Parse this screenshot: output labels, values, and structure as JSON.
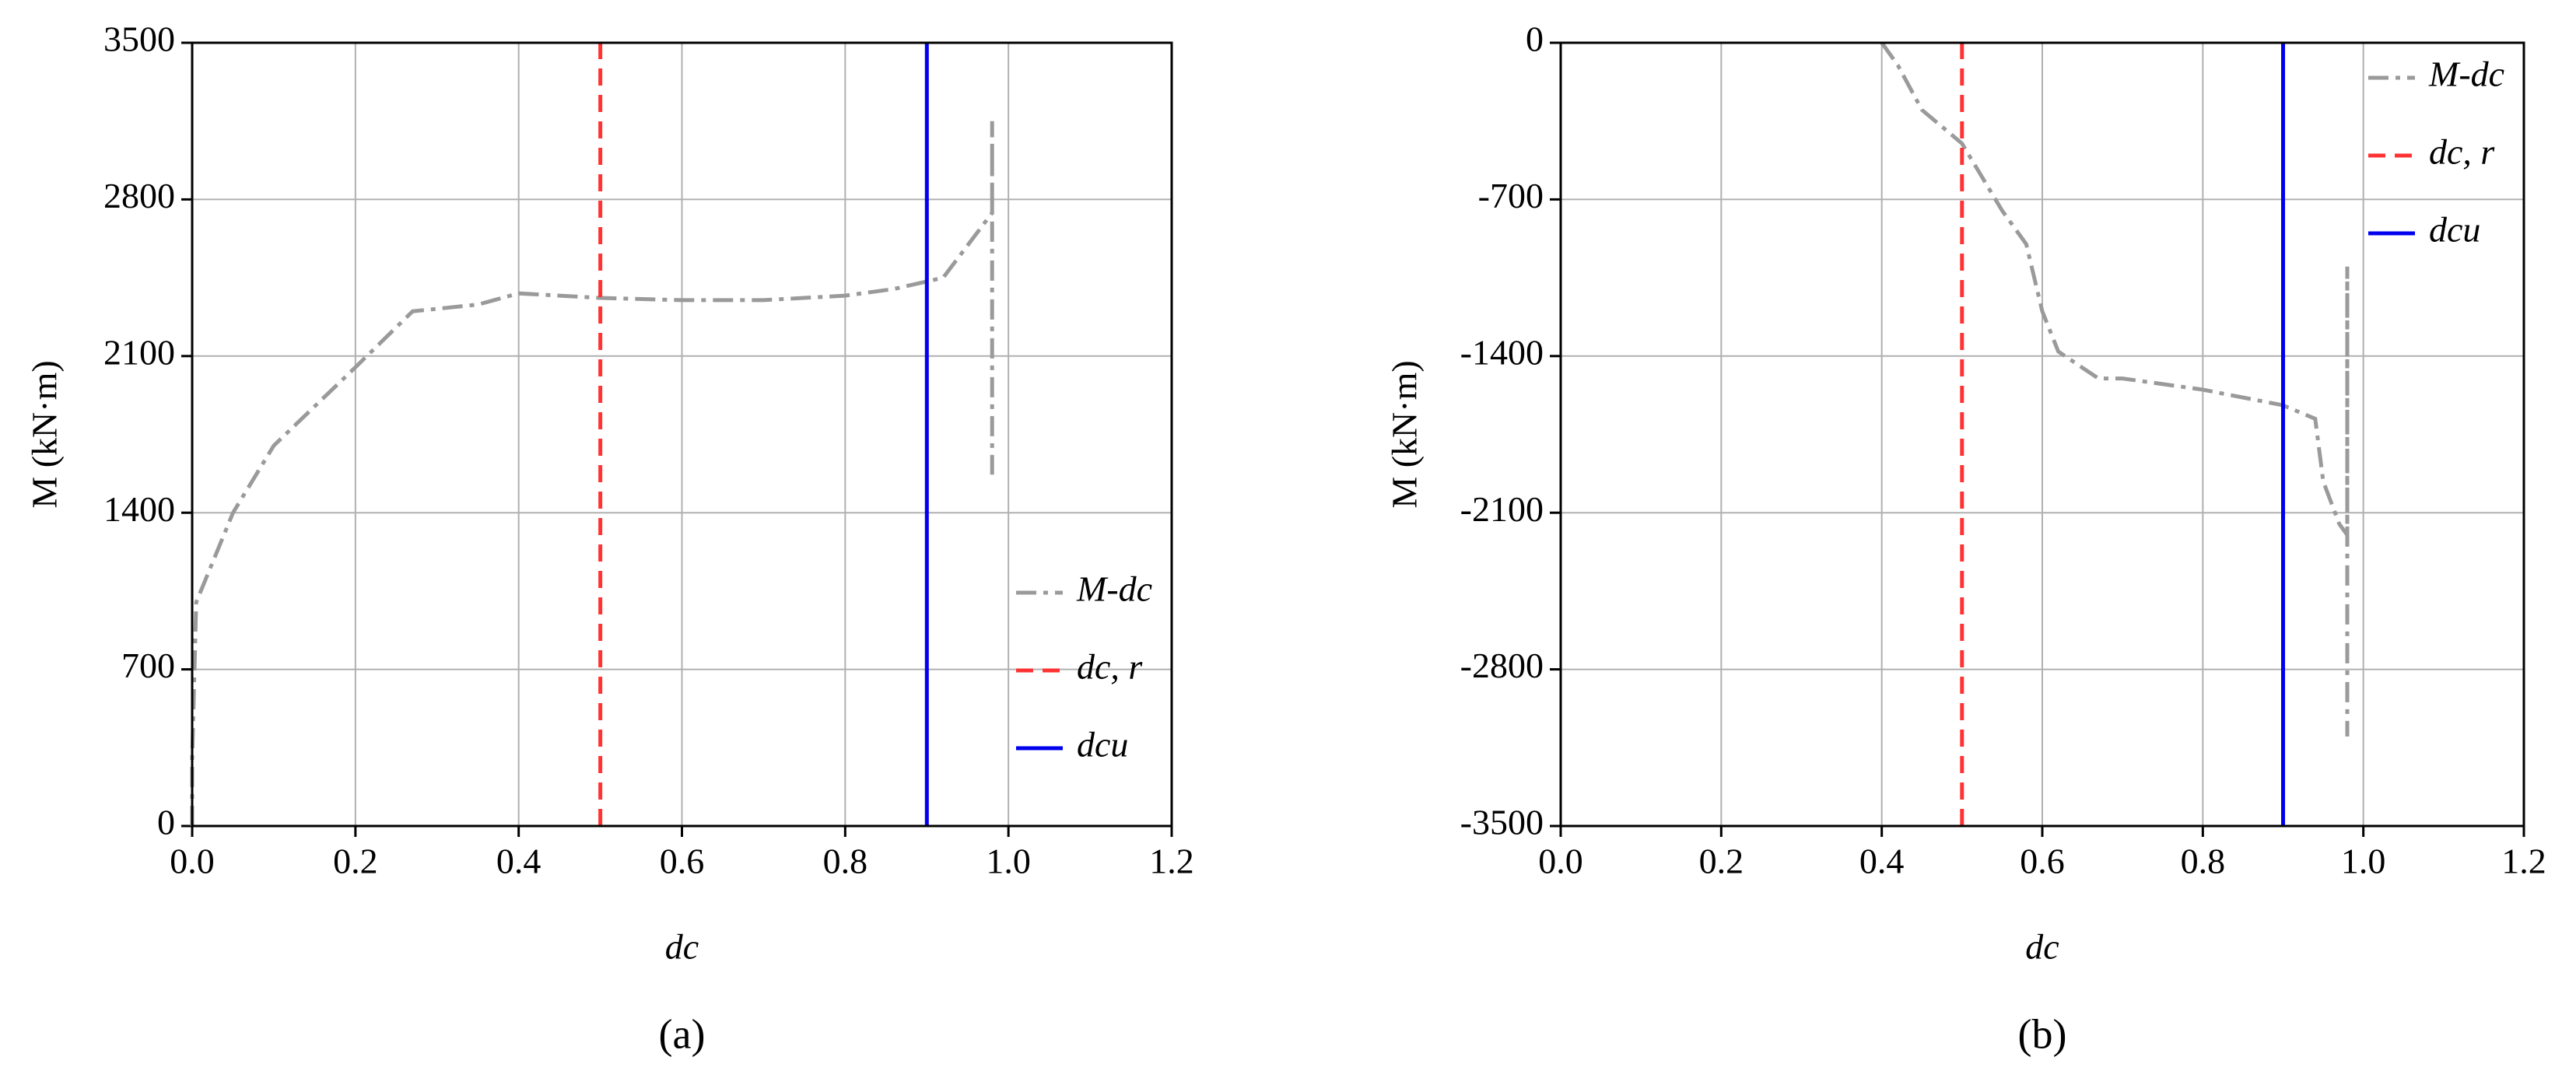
{
  "chart_data": [
    {
      "type": "line",
      "label": "(a)",
      "xlabel": "dc",
      "ylabel": "M (kN·m)",
      "xlim": [
        0,
        1.2
      ],
      "ylim": [
        0,
        3500
      ],
      "xticks": [
        {
          "value": 0,
          "label": "0.0"
        },
        0.2,
        0.4,
        0.6,
        0.8,
        {
          "value": 1,
          "label": "1.0"
        },
        1.2
      ],
      "yticks": [
        0,
        700,
        1400,
        2100,
        2800,
        3500
      ],
      "grid": true,
      "legend": "lower right",
      "series": [
        {
          "name": "M-dc",
          "color": "#9a9a9a",
          "linestyle": "dashdot",
          "x": [
            0,
            0,
            0.005,
            0.05,
            0.1,
            0.2,
            0.27,
            0.35,
            0.4,
            0.5,
            0.6,
            0.7,
            0.8,
            0.86,
            0.92,
            0.98,
            0.98,
            0.98
          ],
          "values": [
            0,
            300,
            1000,
            1400,
            1700,
            2050,
            2300,
            2330,
            2380,
            2360,
            2350,
            2350,
            2370,
            2400,
            2450,
            2740,
            3150,
            1570
          ]
        },
        {
          "name": "dc, r",
          "color": "#ff3333",
          "linestyle": "dashed",
          "x": [
            0.5,
            0.5
          ],
          "values": [
            0,
            3500
          ]
        },
        {
          "name": "dcu",
          "color": "#0000ee",
          "linestyle": "solid",
          "x": [
            0.9,
            0.9
          ],
          "values": [
            0,
            3500
          ]
        }
      ]
    },
    {
      "type": "line",
      "label": "(b)",
      "xlabel": "dc",
      "ylabel": "M (kN·m)",
      "xlim": [
        0,
        1.2
      ],
      "ylim": [
        -3500,
        0
      ],
      "xticks": [
        {
          "value": 0,
          "label": "0.0"
        },
        0.2,
        0.4,
        0.6,
        0.8,
        {
          "value": 1,
          "label": "1.0"
        },
        1.2
      ],
      "yticks": [
        -3500,
        -2800,
        -2100,
        -1400,
        -700,
        0
      ],
      "grid": true,
      "legend": "upper right",
      "series": [
        {
          "name": "M-dc",
          "color": "#9a9a9a",
          "linestyle": "dashdot",
          "x": [
            0.4,
            0.42,
            0.45,
            0.5,
            0.55,
            0.58,
            0.6,
            0.62,
            0.67,
            0.7,
            0.8,
            0.9,
            0.94,
            0.95,
            0.97,
            0.98,
            0.98,
            0.98
          ],
          "values": [
            0,
            -100,
            -300,
            -450,
            -750,
            -900,
            -1200,
            -1380,
            -1500,
            -1500,
            -1550,
            -1620,
            -1680,
            -1960,
            -2150,
            -2200,
            -1000,
            -3100
          ]
        },
        {
          "name": "dc, r",
          "color": "#ff3333",
          "linestyle": "dashed",
          "x": [
            0.5,
            0.5
          ],
          "values": [
            -3500,
            0
          ]
        },
        {
          "name": "dcu",
          "color": "#0000ee",
          "linestyle": "solid",
          "x": [
            0.9,
            0.9
          ],
          "values": [
            -3500,
            0
          ]
        }
      ]
    }
  ]
}
